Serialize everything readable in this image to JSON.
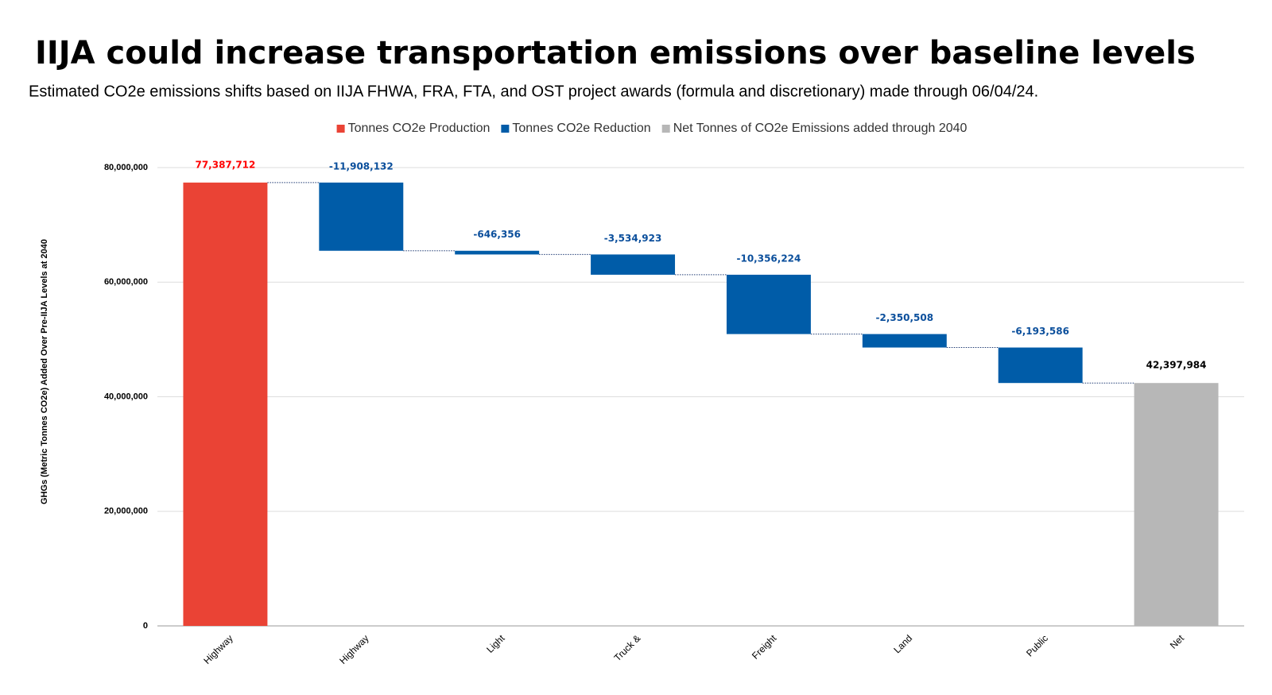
{
  "chart_data": {
    "type": "waterfall",
    "title": "IIJA could increase transportation emissions over baseline levels",
    "subtitle": "Estimated CO2e emissions shifts based on IIJA FHWA, FRA, FTA, and OST project awards (formula and discretionary) made through 06/04/24.",
    "y_label": "GHGs (Metric Tonnes CO2e) Added Over Pre-IIJA Levels at 2040",
    "categories": [
      "Highway",
      "Highway",
      "Light",
      "Truck &",
      "Freight",
      "Land",
      "Public",
      "Net"
    ],
    "series": [
      {
        "name": "Tonnes CO2e Production",
        "color": "#ea4335",
        "value_label_color": "#ff0000",
        "values": [
          77387712,
          null,
          null,
          null,
          null,
          null,
          null,
          null
        ],
        "value_labels": [
          "77,387,712",
          null,
          null,
          null,
          null,
          null,
          null,
          null
        ]
      },
      {
        "name": "Tonnes CO2e Reduction",
        "color": "#005ca8",
        "value_label_color": "#0b4f9c",
        "values": [
          null,
          -11908132,
          -646356,
          -3534923,
          -10356224,
          -2350508,
          -6193586,
          null
        ],
        "value_labels": [
          null,
          "-11,908,132",
          "-646,356",
          "-3,534,923",
          "-10,356,224",
          "-2,350,508",
          "-6,193,586",
          null
        ]
      },
      {
        "name": "Net Tonnes of CO2e Emissions added through 2040",
        "color": "#b7b7b7",
        "value_label_color": "#000000",
        "values": [
          null,
          null,
          null,
          null,
          null,
          null,
          null,
          42397984
        ],
        "value_labels": [
          null,
          null,
          null,
          null,
          null,
          null,
          null,
          "42,397,984"
        ]
      }
    ],
    "ylim": [
      0,
      80000000
    ],
    "yticks": [
      0,
      {
        "value": 20000000,
        "label": "20,000,000"
      },
      {
        "value": 40000000,
        "label": "40,000,000"
      },
      {
        "value": 60000000,
        "label": "60,000,000"
      },
      {
        "value": 80000000,
        "label": "80,000,000"
      }
    ],
    "grid": true
  }
}
